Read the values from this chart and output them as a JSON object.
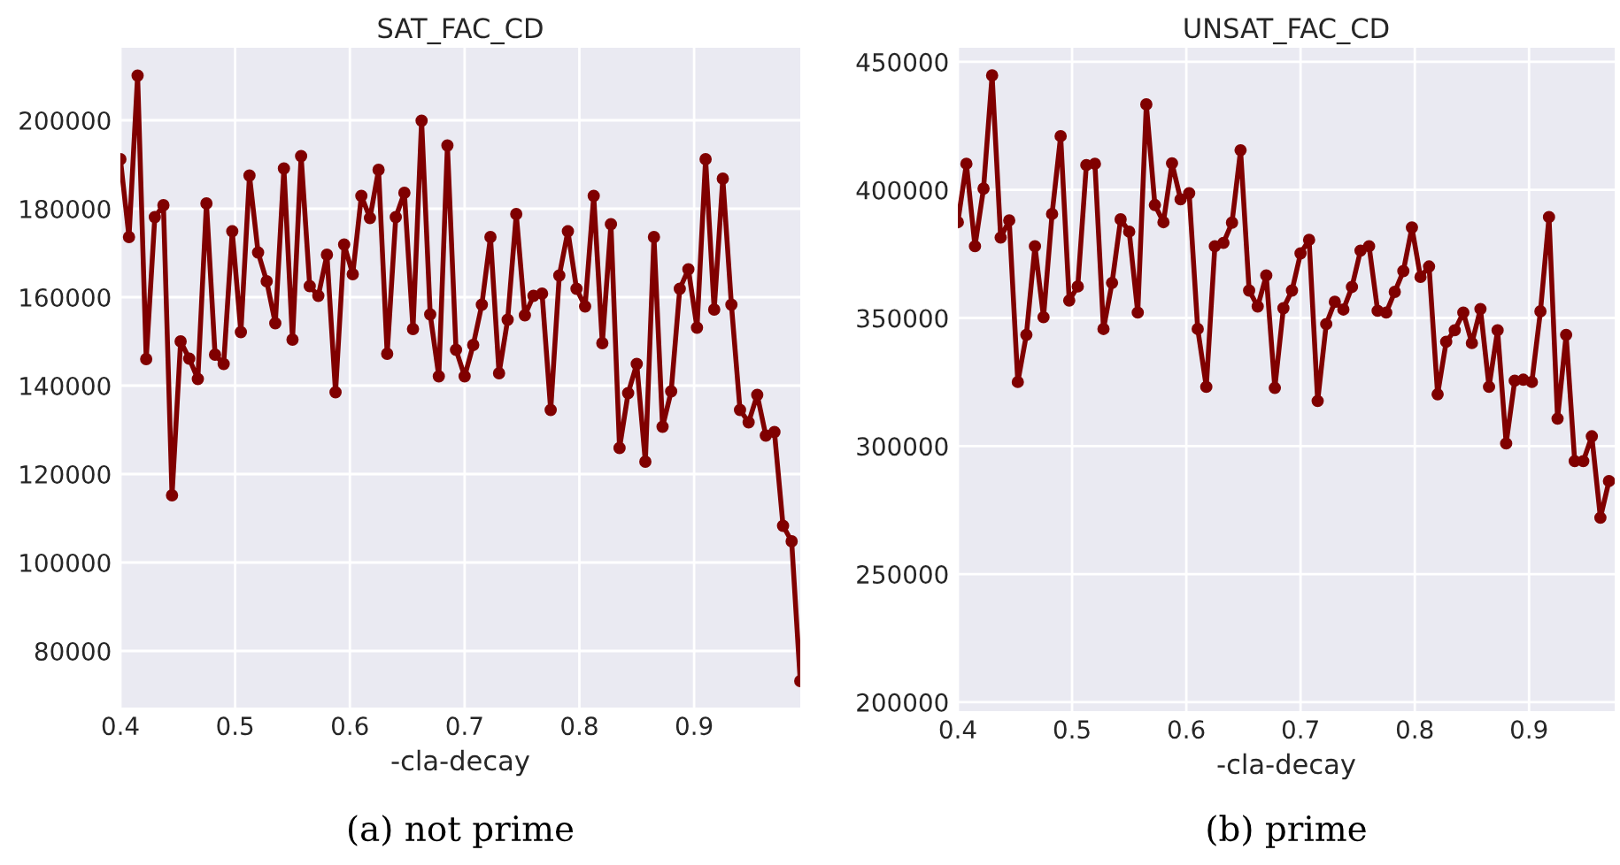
{
  "chart_data": [
    {
      "type": "line",
      "title": "SAT_FAC_CD",
      "xlabel": "-cla-decay",
      "annotations": [
        "(a) not prime"
      ],
      "marker": "circle",
      "grid": true,
      "xlim": [
        0.4,
        0.9925
      ],
      "xticks": [
        0.4,
        0.5,
        0.6,
        0.7,
        0.8,
        0.9
      ],
      "ylim": [
        67200,
        216400
      ],
      "yticks": [
        80000,
        100000,
        120000,
        140000,
        160000,
        180000,
        200000
      ],
      "series": [
        {
          "color": "#800000",
          "x": [
            0.4,
            0.4075,
            0.415,
            0.4225,
            0.43,
            0.4375,
            0.445,
            0.4525,
            0.46,
            0.4675,
            0.475,
            0.4825,
            0.49,
            0.4975,
            0.505,
            0.5125,
            0.52,
            0.5275,
            0.535,
            0.5425,
            0.55,
            0.5575,
            0.565,
            0.5725,
            0.58,
            0.5875,
            0.595,
            0.6025,
            0.61,
            0.6175,
            0.625,
            0.6325,
            0.64,
            0.6475,
            0.655,
            0.6625,
            0.67,
            0.6775,
            0.685,
            0.6925,
            0.7,
            0.7075,
            0.715,
            0.7225,
            0.73,
            0.7375,
            0.745,
            0.7525,
            0.76,
            0.7675,
            0.775,
            0.7825,
            0.79,
            0.7975,
            0.805,
            0.8125,
            0.82,
            0.8275,
            0.835,
            0.8425,
            0.85,
            0.8575,
            0.865,
            0.8725,
            0.88,
            0.8875,
            0.895,
            0.9025,
            0.91,
            0.9175,
            0.925,
            0.9325,
            0.94,
            0.9475,
            0.955,
            0.9625,
            0.97,
            0.9775,
            0.985,
            0.9925
          ],
          "values": [
            191200,
            173600,
            210100,
            146000,
            178100,
            180800,
            115200,
            150000,
            146100,
            141500,
            181200,
            147000,
            144900,
            174900,
            152100,
            187500,
            170100,
            163600,
            154100,
            189100,
            150400,
            191900,
            162500,
            160300,
            169600,
            138500,
            171900,
            165200,
            182900,
            177900,
            188800,
            147200,
            178100,
            183600,
            152800,
            199900,
            156100,
            142100,
            194300,
            148100,
            142100,
            149200,
            158300,
            173600,
            142800,
            154900,
            178800,
            155900,
            160300,
            160800,
            134500,
            164900,
            174900,
            161900,
            157900,
            182900,
            149600,
            176500,
            125900,
            138300,
            144900,
            122800,
            173600,
            130700,
            138700,
            161900,
            166300,
            153100,
            191200,
            157200,
            186800,
            158300,
            134500,
            131700,
            137900,
            128700,
            129500,
            108300,
            104800,
            73200
          ]
        }
      ]
    },
    {
      "type": "line",
      "title": "UNSAT_FAC_CD",
      "xlabel": "-cla-decay",
      "annotations": [
        "(b) prime"
      ],
      "marker": "circle",
      "grid": true,
      "xlim": [
        0.4,
        0.975
      ],
      "xticks": [
        0.4,
        0.5,
        0.6,
        0.7,
        0.8,
        0.9
      ],
      "ylim": [
        196500,
        455500
      ],
      "yticks": [
        200000,
        250000,
        300000,
        350000,
        400000,
        450000
      ],
      "series": [
        {
          "color": "#800000",
          "x": [
            0.4,
            0.4075,
            0.415,
            0.4225,
            0.43,
            0.4375,
            0.445,
            0.4525,
            0.46,
            0.4675,
            0.475,
            0.4825,
            0.49,
            0.4975,
            0.505,
            0.5125,
            0.52,
            0.5275,
            0.535,
            0.5425,
            0.55,
            0.5575,
            0.565,
            0.5725,
            0.58,
            0.5875,
            0.595,
            0.6025,
            0.61,
            0.6175,
            0.625,
            0.6325,
            0.64,
            0.6475,
            0.655,
            0.6625,
            0.67,
            0.6775,
            0.685,
            0.6925,
            0.7,
            0.7075,
            0.715,
            0.7225,
            0.73,
            0.7375,
            0.745,
            0.7525,
            0.76,
            0.7675,
            0.775,
            0.7825,
            0.79,
            0.7975,
            0.805,
            0.8125,
            0.82,
            0.8275,
            0.835,
            0.8425,
            0.85,
            0.8575,
            0.865,
            0.8725,
            0.88,
            0.8875,
            0.895,
            0.9025,
            0.91,
            0.9175,
            0.925,
            0.9325,
            0.94,
            0.9475,
            0.955,
            0.9625,
            0.97
          ],
          "values": [
            387400,
            410200,
            378000,
            400500,
            444700,
            381400,
            388100,
            325000,
            343400,
            378000,
            350300,
            390600,
            421000,
            356800,
            362300,
            409700,
            410200,
            345700,
            363700,
            388500,
            383700,
            352100,
            433400,
            394100,
            387400,
            410400,
            396300,
            398700,
            345700,
            323100,
            378000,
            379300,
            387200,
            415500,
            360700,
            354500,
            366600,
            322700,
            353800,
            360700,
            375200,
            380500,
            317600,
            347600,
            356300,
            353300,
            362100,
            376300,
            378000,
            352800,
            352100,
            360200,
            368300,
            385300,
            366000,
            370100,
            320200,
            340700,
            345200,
            352100,
            340200,
            353500,
            323100,
            345200,
            301000,
            325500,
            325900,
            325000,
            352600,
            389400,
            310700,
            343400,
            294100,
            294100,
            303800,
            272000,
            286300
          ]
        }
      ]
    }
  ]
}
